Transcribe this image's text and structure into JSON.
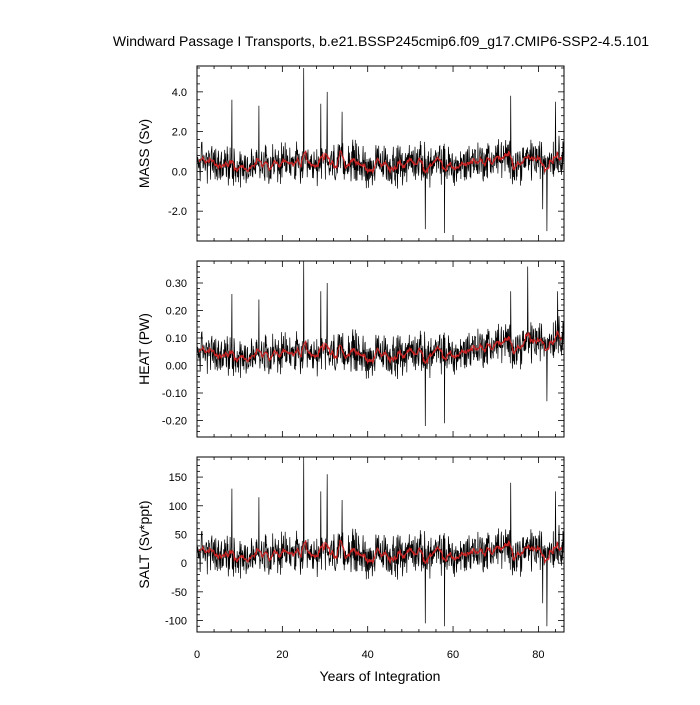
{
  "chart_data": {
    "type": "line",
    "title": "Windward Passage I Transports, b.e21.BSSP245cmip6.f09_g17.CMIP6-SSP2-4.5.101",
    "xlabel": "Years of Integration",
    "xlim": [
      0,
      86
    ],
    "xticks": [
      0,
      20,
      40,
      60,
      80
    ],
    "xtick_labels": [
      "0",
      "20",
      "40",
      "60",
      "80"
    ],
    "colors": {
      "raw": "#000000",
      "smoothed": "#cc2222"
    },
    "panels": [
      {
        "id": "mass",
        "ylabel": "MASS (Sv)",
        "ylim": [
          -3.5,
          5.3
        ],
        "yticks": [
          -2.0,
          0.0,
          2.0,
          4.0
        ],
        "ytick_labels": [
          "-2.0",
          "0.0",
          "2.0",
          "4.0"
        ],
        "base": 0.35,
        "trend": 0.35,
        "noise": 0.75,
        "spikes": [
          [
            8.2,
            3.6
          ],
          [
            14.5,
            3.3
          ],
          [
            25.0,
            5.2
          ],
          [
            29.0,
            3.4
          ],
          [
            30.5,
            4.0
          ],
          [
            34.0,
            3.0
          ],
          [
            53.5,
            -2.9
          ],
          [
            58.0,
            -3.1
          ],
          [
            73.5,
            3.8
          ],
          [
            81.0,
            -1.9
          ],
          [
            82.0,
            -3.0
          ],
          [
            84.0,
            3.5
          ]
        ]
      },
      {
        "id": "heat",
        "ylabel": "HEAT (PW)",
        "ylim": [
          -0.26,
          0.38
        ],
        "yticks": [
          -0.2,
          -0.1,
          0.0,
          0.1,
          0.2,
          0.3
        ],
        "ytick_labels": [
          "-0.20",
          "-0.10",
          "0.00",
          "0.10",
          "0.20",
          "0.30"
        ],
        "base": 0.04,
        "trend": 0.06,
        "noise": 0.055,
        "spikes": [
          [
            8.2,
            0.26
          ],
          [
            14.5,
            0.24
          ],
          [
            25.0,
            0.38
          ],
          [
            29.0,
            0.27
          ],
          [
            30.5,
            0.3
          ],
          [
            53.5,
            -0.22
          ],
          [
            58.0,
            -0.21
          ],
          [
            73.5,
            0.27
          ],
          [
            77.5,
            0.36
          ],
          [
            82.0,
            -0.13
          ],
          [
            84.5,
            0.27
          ]
        ]
      },
      {
        "id": "salt",
        "ylabel": "SALT (Sv*ppt)",
        "ylim": [
          -120,
          185
        ],
        "yticks": [
          -100,
          -50,
          0,
          50,
          100,
          150
        ],
        "ytick_labels": [
          "-100",
          "-50",
          "0",
          "50",
          "100",
          "150"
        ],
        "base": 15,
        "trend": 12,
        "noise": 27,
        "spikes": [
          [
            8.2,
            130
          ],
          [
            14.5,
            115
          ],
          [
            25.0,
            185
          ],
          [
            29.0,
            125
          ],
          [
            30.5,
            155
          ],
          [
            34.0,
            110
          ],
          [
            53.5,
            -105
          ],
          [
            58.0,
            -110
          ],
          [
            73.5,
            140
          ],
          [
            81.0,
            -70
          ],
          [
            82.0,
            -110
          ],
          [
            84.0,
            125
          ]
        ]
      }
    ]
  }
}
